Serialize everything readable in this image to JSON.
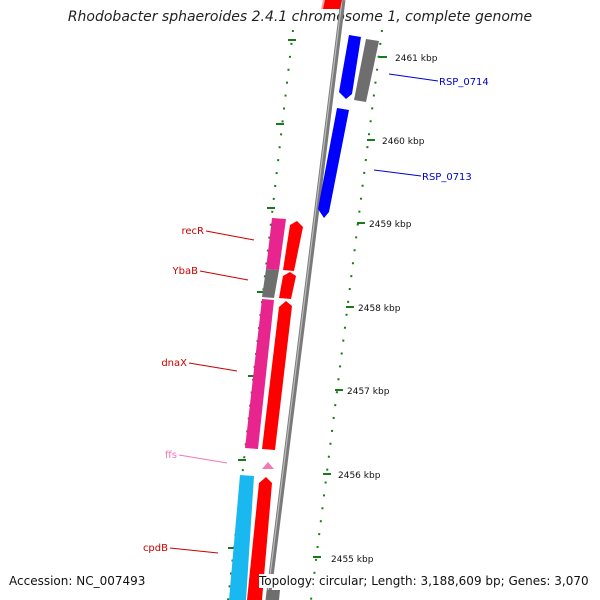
{
  "title": "Rhodobacter sphaeroides 2.4.1 chromosome 1, complete genome",
  "accession": "Accession: NC_007493",
  "summary": "Topology: circular; Length: 3,188,609 bp; Genes: 3,070",
  "ticks": [
    "2461 kbp",
    "2460 kbp",
    "2459 kbp",
    "2458 kbp",
    "2457 kbp",
    "2456 kbp",
    "2455 kbp"
  ],
  "right_labels": [
    {
      "text": "RSP_0714",
      "color": "#0000cc"
    },
    {
      "text": "RSP_0713",
      "color": "#0000cc"
    }
  ],
  "left_labels": [
    {
      "text": "recR",
      "color": "#cc0000"
    },
    {
      "text": "YbaB",
      "color": "#cc0000"
    },
    {
      "text": "dnaX",
      "color": "#cc0000"
    },
    {
      "text": "ffs",
      "color": "#f07ab4"
    },
    {
      "text": "cpdB",
      "color": "#cc0000"
    }
  ],
  "colors": {
    "backbone": "#7a7a7a",
    "cds_red": "#ff0000",
    "cds_blue": "#0000ff",
    "gene_pink": "#e8258f",
    "gene_gray": "#6e6e6e",
    "gene_cyan": "#1ab8f0",
    "rna_pink": "#f07ab4",
    "tick_green": "#1a7a1a"
  }
}
